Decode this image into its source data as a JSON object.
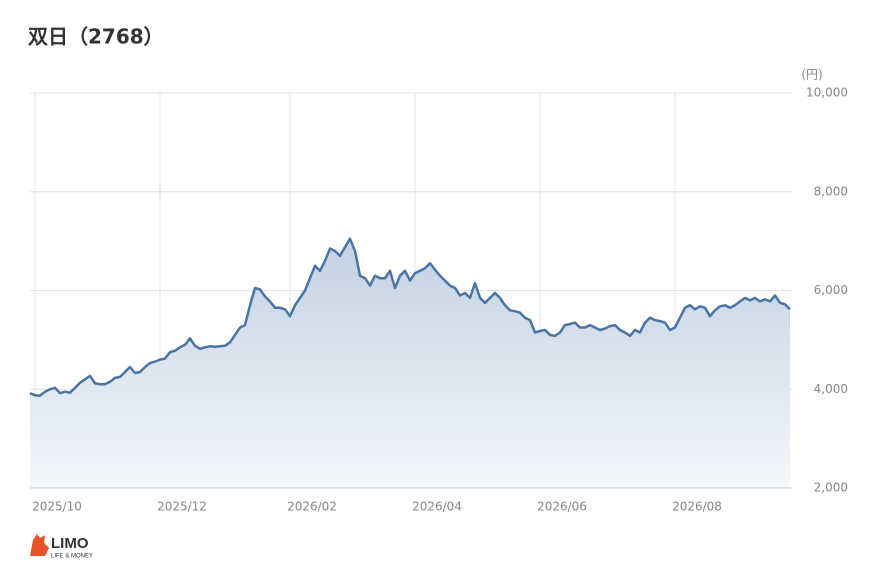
{
  "chart_data": {
    "type": "line",
    "title": "双日（2768）",
    "y_label": "(円)",
    "categories": [
      null,
      "2025/10",
      null,
      null,
      null,
      null,
      null,
      null,
      null,
      null,
      null,
      null,
      null,
      null,
      null,
      null,
      null,
      null,
      null,
      null,
      null,
      null,
      null,
      null,
      null,
      null,
      "2025/12",
      null,
      null,
      null,
      null,
      null,
      null,
      null,
      null,
      null,
      null,
      null,
      null,
      null,
      null,
      null,
      null,
      null,
      null,
      null,
      null,
      null,
      null,
      null,
      null,
      null,
      "2026/02",
      null,
      null,
      null,
      null,
      null,
      null,
      null,
      null,
      null,
      null,
      null,
      null,
      null,
      null,
      null,
      null,
      null,
      null,
      null,
      null,
      null,
      null,
      null,
      null,
      "2026/04",
      null,
      null,
      null,
      null,
      null,
      null,
      null,
      null,
      null,
      null,
      null,
      null,
      null,
      null,
      null,
      null,
      null,
      null,
      null,
      null,
      null,
      null,
      null,
      null,
      "2026/06",
      null,
      null,
      null,
      null,
      null,
      null,
      null,
      null,
      null,
      null,
      null,
      null,
      null,
      null,
      null,
      null,
      null,
      null,
      null,
      null,
      null,
      null,
      null,
      null,
      null,
      null,
      "2026/08",
      null,
      null,
      null,
      null,
      null,
      null,
      null,
      null,
      null,
      null,
      null,
      null,
      null,
      null,
      null,
      null,
      null,
      null,
      null,
      null,
      null,
      null,
      null
    ],
    "series": [
      {
        "color": "#4a74a3",
        "values": [
          3920,
          3880,
          3870,
          3950,
          4000,
          4030,
          3920,
          3950,
          3930,
          4030,
          4130,
          4200,
          4270,
          4120,
          4100,
          4100,
          4150,
          4230,
          4250,
          4350,
          4450,
          4330,
          4350,
          4450,
          4530,
          4560,
          4600,
          4620,
          4750,
          4780,
          4850,
          4900,
          5030,
          4880,
          4820,
          4850,
          4870,
          4860,
          4870,
          4880,
          4950,
          5100,
          5250,
          5300,
          5700,
          6050,
          6020,
          5880,
          5780,
          5650,
          5650,
          5620,
          5480,
          5700,
          5850,
          6000,
          6250,
          6500,
          6400,
          6600,
          6850,
          6800,
          6700,
          6880,
          7050,
          6800,
          6300,
          6250,
          6100,
          6300,
          6250,
          6250,
          6400,
          6050,
          6300,
          6400,
          6200,
          6350,
          6400,
          6450,
          6550,
          6420,
          6300,
          6200,
          6100,
          6050,
          5900,
          5950,
          5850,
          6150,
          5850,
          5750,
          5850,
          5950,
          5850,
          5700,
          5600,
          5580,
          5550,
          5450,
          5400,
          5150,
          5180,
          5200,
          5100,
          5080,
          5150,
          5300,
          5320,
          5350,
          5250,
          5250,
          5300,
          5250,
          5200,
          5230,
          5280,
          5300,
          5200,
          5150,
          5080,
          5200,
          5150,
          5350,
          5450,
          5400,
          5380,
          5350,
          5200,
          5250,
          5450,
          5650,
          5700,
          5620,
          5680,
          5650,
          5480,
          5600,
          5680,
          5700,
          5650,
          5700,
          5780,
          5850,
          5800,
          5850,
          5780,
          5820,
          5780,
          5900,
          5750,
          5720,
          5620
        ]
      }
    ],
    "ylim": [
      2000,
      10000
    ],
    "yticks": [
      {
        "value": 2000,
        "label": "2,000"
      },
      {
        "value": 4000,
        "label": "4,000"
      },
      {
        "value": 6000,
        "label": "6,000"
      },
      {
        "value": 8000,
        "label": "8,000"
      },
      {
        "value": 10000,
        "label": "10,000"
      }
    ],
    "grid": true
  },
  "logo": {
    "name": "LIMO",
    "tagline": "LIFE & MONEY"
  }
}
